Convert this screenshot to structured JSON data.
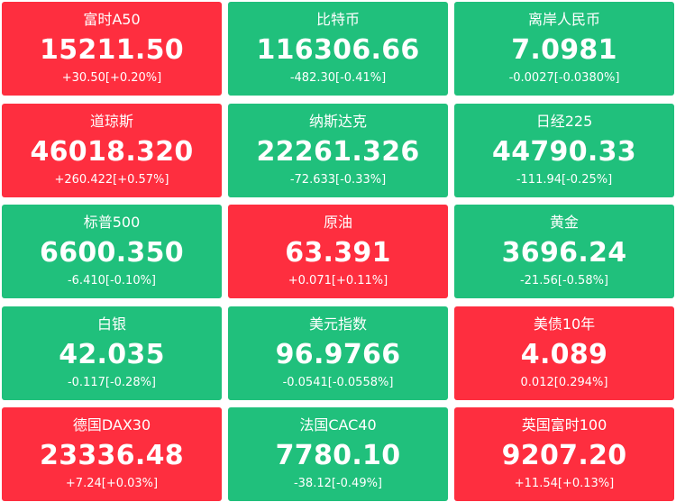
{
  "colors": {
    "up": "#fe2e3f",
    "down": "#20c07c",
    "text": "#ffffff"
  },
  "tiles": [
    {
      "name": "富时A50",
      "price": "15211.50",
      "change": "+30.50[+0.20%]",
      "direction": "up"
    },
    {
      "name": "比特币",
      "price": "116306.66",
      "change": "-482.30[-0.41%]",
      "direction": "down"
    },
    {
      "name": "离岸人民币",
      "price": "7.0981",
      "change": "-0.0027[-0.0380%]",
      "direction": "down"
    },
    {
      "name": "道琼斯",
      "price": "46018.320",
      "change": "+260.422[+0.57%]",
      "direction": "up"
    },
    {
      "name": "纳斯达克",
      "price": "22261.326",
      "change": "-72.633[-0.33%]",
      "direction": "down"
    },
    {
      "name": "日经225",
      "price": "44790.33",
      "change": "-111.94[-0.25%]",
      "direction": "down"
    },
    {
      "name": "标普500",
      "price": "6600.350",
      "change": "-6.410[-0.10%]",
      "direction": "down"
    },
    {
      "name": "原油",
      "price": "63.391",
      "change": "+0.071[+0.11%]",
      "direction": "up"
    },
    {
      "name": "黄金",
      "price": "3696.24",
      "change": "-21.56[-0.58%]",
      "direction": "down"
    },
    {
      "name": "白银",
      "price": "42.035",
      "change": "-0.117[-0.28%]",
      "direction": "down"
    },
    {
      "name": "美元指数",
      "price": "96.9766",
      "change": "-0.0541[-0.0558%]",
      "direction": "down"
    },
    {
      "name": "美债10年",
      "price": "4.089",
      "change": "0.012[0.294%]",
      "direction": "up"
    },
    {
      "name": "德国DAX30",
      "price": "23336.48",
      "change": "+7.24[+0.03%]",
      "direction": "up"
    },
    {
      "name": "法国CAC40",
      "price": "7780.10",
      "change": "-38.12[-0.49%]",
      "direction": "down"
    },
    {
      "name": "英国富时100",
      "price": "9207.20",
      "change": "+11.54[+0.13%]",
      "direction": "up"
    }
  ]
}
